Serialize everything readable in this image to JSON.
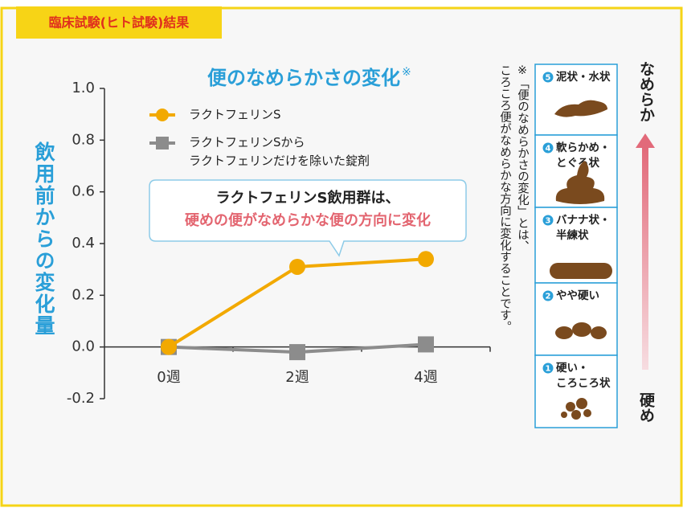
{
  "header": {
    "tab": "臨床試験(ヒト試験)結果"
  },
  "chart_data": {
    "type": "line",
    "title": "便のなめらかさの変化",
    "title_note": "※",
    "ylabel": "飲用前からの変化量",
    "categories": [
      "0週",
      "2週",
      "4週"
    ],
    "series": [
      {
        "name": "ラクトフェリンS",
        "color": "#f2a900",
        "marker": "circle",
        "values": [
          0,
          0.31,
          0.34
        ]
      },
      {
        "name": "ラクトフェリンSから\nラクトフェリンだけを除いた錠剤",
        "color": "#8c8c8c",
        "marker": "square",
        "values": [
          0,
          -0.02,
          0.01
        ]
      }
    ],
    "ylim": [
      -0.2,
      1.0
    ],
    "yticks": [
      -0.2,
      {
        "value": 0,
        "label": "0.0"
      },
      0.2,
      0.4,
      0.6,
      0.8,
      {
        "value": 1,
        "label": "1.0"
      }
    ],
    "annotations": [
      "ラクトフェリンS飲用群は、",
      "硬めの便がなめらかな便の方向に変化"
    ]
  },
  "note": [
    "※「便のなめらかさの変化」とは、",
    "ころころ便がなめらかな方向に変化することです。"
  ],
  "scale": {
    "top": "なめらか",
    "bottom": "硬め",
    "items": [
      {
        "number": "5",
        "lines": [
          "泥状・水状"
        ]
      },
      {
        "number": "4",
        "lines": [
          "軟らかめ・",
          "とぐろ状"
        ]
      },
      {
        "number": "3",
        "lines": [
          "バナナ状・",
          "半練状"
        ]
      },
      {
        "number": "2",
        "lines": [
          "やや硬い"
        ]
      },
      {
        "number": "1",
        "lines": [
          "硬い・",
          "ころころ状"
        ]
      }
    ]
  }
}
